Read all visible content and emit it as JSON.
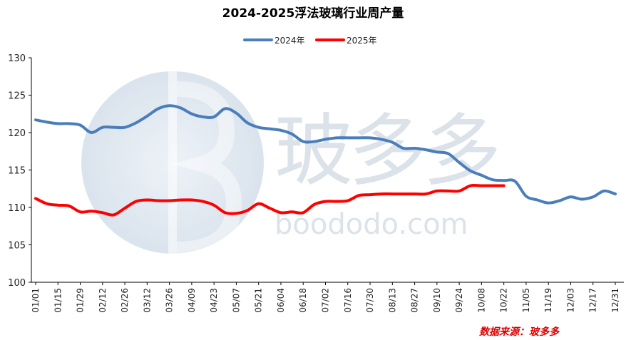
{
  "chart_data": {
    "type": "line",
    "title": "2024-2025浮法玻璃行业周产量",
    "x_ticks": [
      "01/01",
      "01/15",
      "01/29",
      "02/12",
      "02/26",
      "03/12",
      "03/26",
      "04/09",
      "04/23",
      "05/07",
      "05/21",
      "06/04",
      "06/18",
      "07/02",
      "07/16",
      "07/30",
      "08/13",
      "08/27",
      "09/10",
      "09/24",
      "10/08",
      "10/22",
      "11/05",
      "11/19",
      "12/03",
      "12/17",
      "12/31"
    ],
    "ylim": [
      100,
      130
    ],
    "y_ticks": [
      100,
      105,
      110,
      115,
      120,
      125,
      130
    ],
    "legend_position": "top-center",
    "series": [
      {
        "name": "2024年",
        "color": "#4a7ebb",
        "x": [
          "01/01",
          "01/08",
          "01/15",
          "01/22",
          "01/29",
          "02/05",
          "02/12",
          "02/19",
          "02/26",
          "03/05",
          "03/12",
          "03/19",
          "03/26",
          "04/02",
          "04/09",
          "04/16",
          "04/23",
          "04/30",
          "05/07",
          "05/14",
          "05/21",
          "05/28",
          "06/04",
          "06/11",
          "06/18",
          "06/25",
          "07/02",
          "07/09",
          "07/16",
          "07/23",
          "07/30",
          "08/06",
          "08/13",
          "08/20",
          "08/27",
          "09/03",
          "09/10",
          "09/17",
          "09/24",
          "10/01",
          "10/08",
          "10/15",
          "10/22",
          "10/29",
          "11/05",
          "11/12",
          "11/19",
          "11/26",
          "12/03",
          "12/10",
          "12/17",
          "12/24",
          "12/31"
        ],
        "values": [
          121.7,
          121.4,
          121.2,
          121.2,
          121.0,
          120.0,
          120.7,
          120.7,
          120.7,
          121.3,
          122.2,
          123.2,
          123.6,
          123.3,
          122.5,
          122.1,
          122.1,
          123.2,
          122.6,
          121.3,
          120.7,
          120.5,
          120.3,
          119.8,
          118.8,
          118.8,
          119.1,
          119.3,
          119.3,
          119.3,
          119.3,
          119.1,
          118.7,
          117.9,
          117.9,
          117.7,
          117.4,
          117.2,
          116.0,
          114.9,
          114.3,
          113.7,
          113.6,
          113.5,
          111.5,
          111.0,
          110.6,
          110.9,
          111.4,
          111.1,
          111.4,
          112.2,
          111.8
        ]
      },
      {
        "name": "2025年",
        "color": "#ff0000",
        "x": [
          "01/01",
          "01/08",
          "01/15",
          "01/22",
          "01/29",
          "02/05",
          "02/12",
          "02/19",
          "02/26",
          "03/05",
          "03/12",
          "03/19",
          "03/26",
          "04/02",
          "04/09",
          "04/16",
          "04/23",
          "04/30",
          "05/07",
          "05/14",
          "05/21",
          "05/28",
          "06/04",
          "06/11",
          "06/18",
          "06/25",
          "07/02",
          "07/09",
          "07/16",
          "07/23",
          "07/30",
          "08/06",
          "08/13",
          "08/20",
          "08/27",
          "09/03",
          "09/10",
          "09/17",
          "09/24",
          "10/01",
          "10/08",
          "10/15",
          "10/22"
        ],
        "values": [
          111.2,
          110.5,
          110.3,
          110.2,
          109.4,
          109.5,
          109.3,
          109.0,
          109.9,
          110.8,
          111.0,
          110.9,
          110.9,
          111.0,
          111.0,
          110.8,
          110.3,
          109.3,
          109.2,
          109.6,
          110.5,
          109.9,
          109.3,
          109.4,
          109.3,
          110.4,
          110.8,
          110.8,
          110.9,
          111.6,
          111.7,
          111.8,
          111.8,
          111.8,
          111.8,
          111.8,
          112.2,
          112.2,
          112.2,
          112.9,
          112.9,
          112.9,
          112.9
        ]
      }
    ]
  },
  "watermark": {
    "text": "玻多多",
    "url": "boododo.com",
    "colors": [
      "#dfe7ef",
      "#c9d6e3"
    ]
  },
  "source_note": "数据来源：玻多多"
}
